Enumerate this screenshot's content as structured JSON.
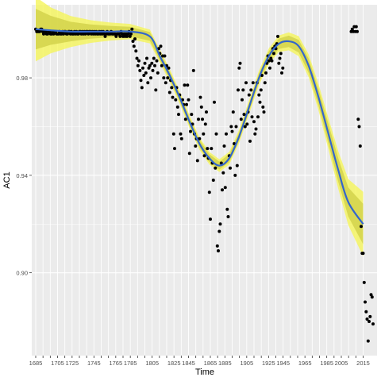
{
  "chart_data": {
    "type": "scatter",
    "title": "",
    "xlabel": "Time",
    "ylabel": "AC1",
    "ylim": [
      0.866,
      1.01
    ],
    "y_ticks": [
      0.9,
      0.94,
      0.98
    ],
    "y_tick_labels": [
      "0.90",
      "0.94",
      "0.98"
    ],
    "x_tick_count": 46,
    "x_tick_labels": [
      "1685",
      "1705",
      "1725",
      "1745",
      "1765",
      "1785",
      "1805",
      "1825",
      "1845",
      "1865",
      "1885",
      "1905",
      "1925",
      "1945",
      "1965",
      "1985",
      "2005",
      "2015"
    ],
    "grid": true,
    "colors": {
      "panel": "#ebebeb",
      "grid_major": "#ffffff",
      "point": "#000000",
      "smooth_line": "#3366cc",
      "ribbon_outer": "#f5f55a",
      "ribbon_inner": "#cfcf45"
    },
    "points": [
      [
        1685,
        1.0
      ],
      [
        1686,
        0.999
      ],
      [
        1687,
        0.999
      ],
      [
        1688,
        0.999
      ],
      [
        1689,
        0.999
      ],
      [
        1690,
        1.0
      ],
      [
        1691,
        1.0
      ],
      [
        1692,
        0.999
      ],
      [
        1693,
        0.998
      ],
      [
        1694,
        0.999
      ],
      [
        1695,
        0.999
      ],
      [
        1696,
        0.998
      ],
      [
        1697,
        0.998
      ],
      [
        1698,
        0.999
      ],
      [
        1699,
        0.999
      ],
      [
        1700,
        0.998
      ],
      [
        1701,
        0.998
      ],
      [
        1702,
        0.999
      ],
      [
        1703,
        0.998
      ],
      [
        1704,
        0.999
      ],
      [
        1705,
        0.999
      ],
      [
        1706,
        0.998
      ],
      [
        1707,
        0.998
      ],
      [
        1708,
        0.998
      ],
      [
        1709,
        0.999
      ],
      [
        1710,
        0.998
      ],
      [
        1711,
        0.998
      ],
      [
        1712,
        0.999
      ],
      [
        1713,
        0.998
      ],
      [
        1714,
        0.999
      ],
      [
        1715,
        0.999
      ],
      [
        1716,
        0.998
      ],
      [
        1717,
        0.998
      ],
      [
        1718,
        0.999
      ],
      [
        1719,
        0.999
      ],
      [
        1720,
        0.998
      ],
      [
        1721,
        0.999
      ],
      [
        1722,
        0.998
      ],
      [
        1723,
        0.998
      ],
      [
        1724,
        0.999
      ],
      [
        1725,
        0.998
      ],
      [
        1726,
        0.999
      ],
      [
        1727,
        0.998
      ],
      [
        1728,
        0.998
      ],
      [
        1729,
        0.999
      ],
      [
        1730,
        0.999
      ],
      [
        1731,
        0.998
      ],
      [
        1732,
        0.999
      ],
      [
        1733,
        0.998
      ],
      [
        1734,
        0.999
      ],
      [
        1735,
        0.998
      ],
      [
        1736,
        0.999
      ],
      [
        1737,
        0.999
      ],
      [
        1738,
        0.998
      ],
      [
        1739,
        0.999
      ],
      [
        1740,
        0.999
      ],
      [
        1741,
        0.998
      ],
      [
        1742,
        0.999
      ],
      [
        1743,
        0.998
      ],
      [
        1744,
        0.999
      ],
      [
        1745,
        0.998
      ],
      [
        1746,
        0.999
      ],
      [
        1747,
        0.998
      ],
      [
        1748,
        0.998
      ],
      [
        1749,
        0.999
      ],
      [
        1750,
        0.998
      ],
      [
        1751,
        0.999
      ],
      [
        1752,
        0.998
      ],
      [
        1753,
        0.999
      ],
      [
        1754,
        0.998
      ],
      [
        1755,
        0.997
      ],
      [
        1756,
        0.998
      ],
      [
        1757,
        0.999
      ],
      [
        1758,
        0.998
      ],
      [
        1759,
        0.998
      ],
      [
        1760,
        0.998
      ],
      [
        1761,
        0.999
      ],
      [
        1762,
        0.998
      ],
      [
        1763,
        0.998
      ],
      [
        1764,
        0.998
      ],
      [
        1765,
        0.998
      ],
      [
        1766,
        0.997
      ],
      [
        1767,
        0.998
      ],
      [
        1768,
        0.998
      ],
      [
        1769,
        0.998
      ],
      [
        1770,
        0.997
      ],
      [
        1771,
        0.999
      ],
      [
        1772,
        0.998
      ],
      [
        1773,
        0.997
      ],
      [
        1774,
        0.998
      ],
      [
        1775,
        0.997
      ],
      [
        1776,
        0.998
      ],
      [
        1777,
        0.997
      ],
      [
        1778,
        0.998
      ],
      [
        1779,
        0.999
      ],
      [
        1780,
        0.997
      ],
      [
        1781,
        0.998
      ],
      [
        1782,
        1.0
      ],
      [
        1783,
        0.995
      ],
      [
        1784,
        0.993
      ],
      [
        1785,
        0.996
      ],
      [
        1786,
        0.991
      ],
      [
        1787,
        0.988
      ],
      [
        1788,
        0.985
      ],
      [
        1789,
        0.987
      ],
      [
        1790,
        0.983
      ],
      [
        1791,
        0.979
      ],
      [
        1792,
        0.976
      ],
      [
        1793,
        0.984
      ],
      [
        1794,
        0.981
      ],
      [
        1795,
        0.986
      ],
      [
        1796,
        0.982
      ],
      [
        1797,
        0.988
      ],
      [
        1798,
        0.978
      ],
      [
        1799,
        0.984
      ],
      [
        1800,
        0.985
      ],
      [
        1801,
        0.98
      ],
      [
        1802,
        0.986
      ],
      [
        1803,
        0.983
      ],
      [
        1804,
        0.988
      ],
      [
        1805,
        0.985
      ],
      [
        1806,
        0.975
      ],
      [
        1807,
        0.987
      ],
      [
        1808,
        0.982
      ],
      [
        1809,
        0.992
      ],
      [
        1810,
        0.99
      ],
      [
        1811,
        0.993
      ],
      [
        1812,
        0.985
      ],
      [
        1813,
        0.989
      ],
      [
        1814,
        0.98
      ],
      [
        1815,
        0.989
      ],
      [
        1816,
        0.978
      ],
      [
        1817,
        0.985
      ],
      [
        1818,
        0.98
      ],
      [
        1819,
        0.984
      ],
      [
        1820,
        0.974
      ],
      [
        1821,
        0.979
      ],
      [
        1822,
        0.976
      ],
      [
        1823,
        0.972
      ],
      [
        1824,
        0.957
      ],
      [
        1825,
        0.951
      ],
      [
        1826,
        0.971
      ],
      [
        1827,
        0.976
      ],
      [
        1828,
        0.968
      ],
      [
        1829,
        0.965
      ],
      [
        1830,
        0.973
      ],
      [
        1831,
        0.957
      ],
      [
        1832,
        0.955
      ],
      [
        1833,
        0.971
      ],
      [
        1834,
        0.969
      ],
      [
        1835,
        0.977
      ],
      [
        1836,
        0.963
      ],
      [
        1837,
        0.969
      ],
      [
        1838,
        0.977
      ],
      [
        1839,
        0.971
      ],
      [
        1840,
        0.949
      ],
      [
        1841,
        0.958
      ],
      [
        1842,
        0.965
      ],
      [
        1843,
        0.961
      ],
      [
        1844,
        0.983
      ],
      [
        1845,
        0.957
      ],
      [
        1846,
        0.952
      ],
      [
        1847,
        0.955
      ],
      [
        1848,
        0.946
      ],
      [
        1849,
        0.963
      ],
      [
        1850,
        0.955
      ],
      [
        1851,
        0.972
      ],
      [
        1852,
        0.968
      ],
      [
        1853,
        0.963
      ],
      [
        1854,
        0.957
      ],
      [
        1855,
        0.948
      ],
      [
        1856,
        0.961
      ],
      [
        1857,
        0.966
      ],
      [
        1858,
        0.951
      ],
      [
        1859,
        0.947
      ],
      [
        1860,
        0.933
      ],
      [
        1861,
        0.922
      ],
      [
        1862,
        0.951
      ],
      [
        1863,
        0.945
      ],
      [
        1864,
        0.938
      ],
      [
        1865,
        0.97
      ],
      [
        1866,
        0.943
      ],
      [
        1867,
        0.957
      ],
      [
        1868,
        0.911
      ],
      [
        1869,
        0.909
      ],
      [
        1870,
        0.917
      ],
      [
        1871,
        0.92
      ],
      [
        1872,
        0.945
      ],
      [
        1873,
        0.934
      ],
      [
        1874,
        0.941
      ],
      [
        1875,
        0.952
      ],
      [
        1876,
        0.935
      ],
      [
        1877,
        0.957
      ],
      [
        1878,
        0.926
      ],
      [
        1879,
        0.923
      ],
      [
        1880,
        0.948
      ],
      [
        1881,
        0.943
      ],
      [
        1882,
        0.96
      ],
      [
        1883,
        0.958
      ],
      [
        1884,
        0.966
      ],
      [
        1885,
        0.953
      ],
      [
        1886,
        0.94
      ],
      [
        1887,
        0.96
      ],
      [
        1888,
        0.944
      ],
      [
        1889,
        0.975
      ],
      [
        1890,
        0.984
      ],
      [
        1891,
        0.986
      ],
      [
        1892,
        0.963
      ],
      [
        1893,
        0.971
      ],
      [
        1894,
        0.975
      ],
      [
        1895,
        0.965
      ],
      [
        1896,
        0.96
      ],
      [
        1897,
        0.978
      ],
      [
        1898,
        0.961
      ],
      [
        1899,
        0.966
      ],
      [
        1900,
        0.973
      ],
      [
        1901,
        0.954
      ],
      [
        1902,
        0.975
      ],
      [
        1903,
        0.964
      ],
      [
        1904,
        0.978
      ],
      [
        1905,
        0.962
      ],
      [
        1906,
        0.957
      ],
      [
        1907,
        0.959
      ],
      [
        1908,
        0.978
      ],
      [
        1909,
        0.964
      ],
      [
        1910,
        0.973
      ],
      [
        1911,
        0.97
      ],
      [
        1912,
        0.975
      ],
      [
        1913,
        0.981
      ],
      [
        1914,
        0.968
      ],
      [
        1915,
        0.966
      ],
      [
        1916,
        0.978
      ],
      [
        1917,
        0.982
      ],
      [
        1918,
        0.986
      ],
      [
        1919,
        0.989
      ],
      [
        1920,
        0.987
      ],
      [
        1921,
        0.984
      ],
      [
        1922,
        0.988
      ],
      [
        1923,
        0.987
      ],
      [
        1924,
        0.992
      ],
      [
        1925,
        0.99
      ],
      [
        1926,
        0.993
      ],
      [
        1927,
        0.992
      ],
      [
        1928,
        0.994
      ],
      [
        1929,
        0.997
      ],
      [
        1930,
        0.986
      ],
      [
        1931,
        0.988
      ],
      [
        1932,
        0.99
      ],
      [
        1933,
        0.982
      ],
      [
        1934,
        0.984
      ],
      [
        2003,
        0.999
      ],
      [
        2004,
        1.0
      ],
      [
        2005,
        0.999
      ],
      [
        2006,
        1.001
      ],
      [
        2007,
        0.999
      ],
      [
        2008,
        1.001
      ],
      [
        2009,
        0.999
      ],
      [
        2010,
        0.963
      ],
      [
        2011,
        0.96
      ],
      [
        2012,
        0.952
      ],
      [
        2013,
        0.919
      ],
      [
        2014,
        0.908
      ],
      [
        2015,
        0.908
      ],
      [
        2016,
        0.896
      ],
      [
        2017,
        0.888
      ],
      [
        2018,
        0.884
      ],
      [
        2019,
        0.881
      ],
      [
        2020,
        0.872
      ],
      [
        2021,
        0.88
      ],
      [
        2022,
        0.882
      ],
      [
        2023,
        0.891
      ],
      [
        2024,
        0.89
      ],
      [
        2025,
        0.879
      ]
    ],
    "smooth": [
      [
        1685,
        1.0
      ],
      [
        1700,
        0.9995
      ],
      [
        1720,
        0.999
      ],
      [
        1740,
        0.999
      ],
      [
        1760,
        0.999
      ],
      [
        1780,
        0.999
      ],
      [
        1800,
        0.997
      ],
      [
        1810,
        0.989
      ],
      [
        1820,
        0.981
      ],
      [
        1830,
        0.972
      ],
      [
        1840,
        0.962
      ],
      [
        1850,
        0.953
      ],
      [
        1860,
        0.947
      ],
      [
        1870,
        0.944
      ],
      [
        1880,
        0.947
      ],
      [
        1890,
        0.956
      ],
      [
        1900,
        0.968
      ],
      [
        1910,
        0.98
      ],
      [
        1920,
        0.989
      ],
      [
        1930,
        0.994
      ],
      [
        1940,
        0.995
      ],
      [
        1950,
        0.993
      ],
      [
        1960,
        0.985
      ],
      [
        1970,
        0.972
      ],
      [
        1980,
        0.957
      ],
      [
        1990,
        0.942
      ],
      [
        2000,
        0.929
      ],
      [
        2015,
        0.92
      ]
    ]
  }
}
